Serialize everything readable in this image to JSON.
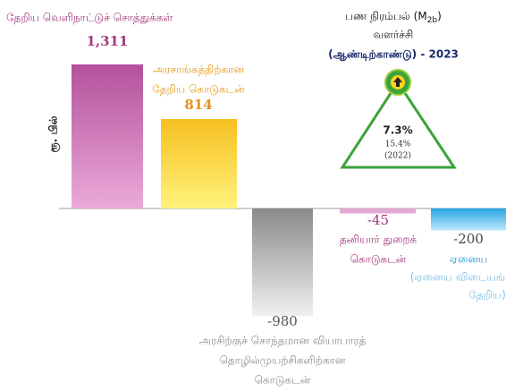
{
  "chart_data": {
    "type": "bar",
    "y_label": "ரூ. பில்",
    "categories": [
      [
        "தேறிய வெளிநாட்டுச் சொத்துக்கள்"
      ],
      [
        "அரசாங்கத்திற்கான",
        "தேறிய கொடுகடன்"
      ],
      [
        "அரசிற்குச் சொந்தமான வியாபாரத்",
        "தொழில்முயற்சிகளிற்கான",
        "கொடுகடன்"
      ],
      [
        "தனியார் துறைக்",
        "கொடுகடன்"
      ],
      [
        "ஏனைய"
      ]
    ],
    "values": [
      1311,
      814,
      -980,
      -45,
      -200
    ],
    "value_labels": [
      "1,311",
      "814",
      "-980",
      "-45",
      "-200"
    ],
    "other_note": [
      "(ஏனைய விடையங்",
      "தேறிய)"
    ],
    "colors": [
      [
        "#b4519d",
        "#eaaad9"
      ],
      [
        "#f6c020",
        "#fff27c"
      ],
      [
        "#8a8a8a",
        "#f0f0f0"
      ],
      [
        "#e3a9d4",
        "#e3a9d4"
      ],
      [
        "#29a6e3",
        "#bde7f9"
      ]
    ],
    "label_colors": [
      "#a3377f",
      "#e89a1c",
      "#8c8c8c",
      "#a3377f",
      "#1e9ad6"
    ],
    "value_label_colors": [
      "#a3377f",
      "#e8901a",
      "#555555",
      "#a3377f",
      "#444444"
    ],
    "growth": {
      "title_pre": "பண நிரம்பல் (M",
      "title_sub": "2b",
      "title_post": ")",
      "title_line2": "வளர்ச்சி",
      "title_line3": "(ஆண்டிற்காண்டு)  -  2023",
      "current": "7.3%",
      "previous": "15.4%",
      "previous_year": "(2022)"
    }
  }
}
